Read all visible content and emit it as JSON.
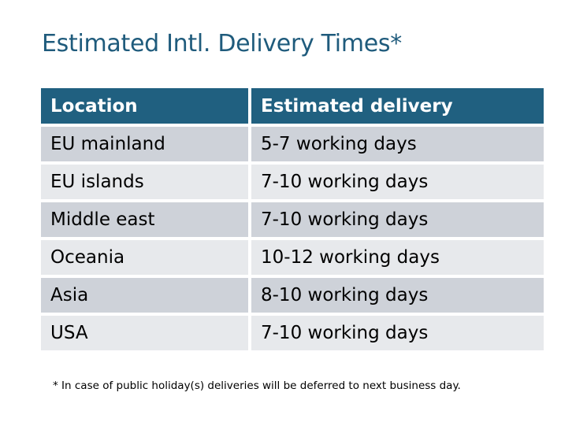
{
  "title": "Estimated Intl. Delivery Times*",
  "table": {
    "headers": [
      "Location",
      "Estimated delivery"
    ],
    "rows": [
      [
        "EU mainland",
        "5-7 working days"
      ],
      [
        "EU islands",
        "7-10 working days"
      ],
      [
        "Middle east",
        "7-10 working days"
      ],
      [
        "Oceania",
        "10-12 working days"
      ],
      [
        "Asia",
        "8-10 working days"
      ],
      [
        "USA",
        "7-10 working days"
      ]
    ]
  },
  "footnote": "* In case of public holiday(s) deliveries will be deferred to next business day.",
  "colors": {
    "header": "#206080",
    "title": "#1f5b7c",
    "row_odd": "#ced2d9",
    "row_even": "#e7e9ec"
  }
}
